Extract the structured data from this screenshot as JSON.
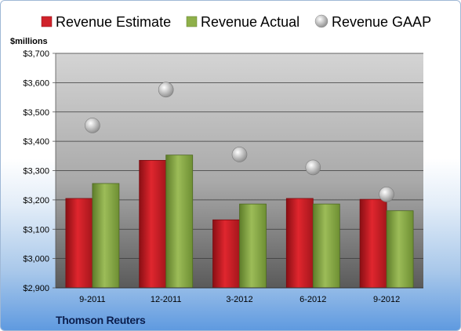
{
  "chart_data": {
    "type": "bar",
    "categories": [
      "9-2011",
      "12-2011",
      "3-2012",
      "6-2012",
      "9-2012"
    ],
    "series": [
      {
        "name": "Revenue Estimate",
        "type": "bar",
        "color": "#d0232b",
        "values": [
          3205,
          3335,
          3132,
          3205,
          3202
        ]
      },
      {
        "name": "Revenue Actual",
        "type": "bar",
        "color": "#8fb04a",
        "values": [
          3256,
          3353,
          3186,
          3186,
          3163
        ]
      },
      {
        "name": "Revenue GAAP",
        "type": "scatter",
        "color": "#b3b3b3",
        "values": [
          3454,
          3576,
          3355,
          3311,
          3219
        ]
      }
    ],
    "ylabel": "$millions",
    "ylim": [
      2900,
      3700
    ],
    "yticks": [
      2900,
      3000,
      3100,
      3200,
      3300,
      3400,
      3500,
      3600,
      3700
    ],
    "ytick_labels": [
      "$2,900",
      "$3,000",
      "$3,100",
      "$3,200",
      "$3,300",
      "$3,400",
      "$3,500",
      "$3,600",
      "$3,700"
    ],
    "grid": true,
    "legend_position": "top"
  },
  "source": "Thomson Reuters"
}
